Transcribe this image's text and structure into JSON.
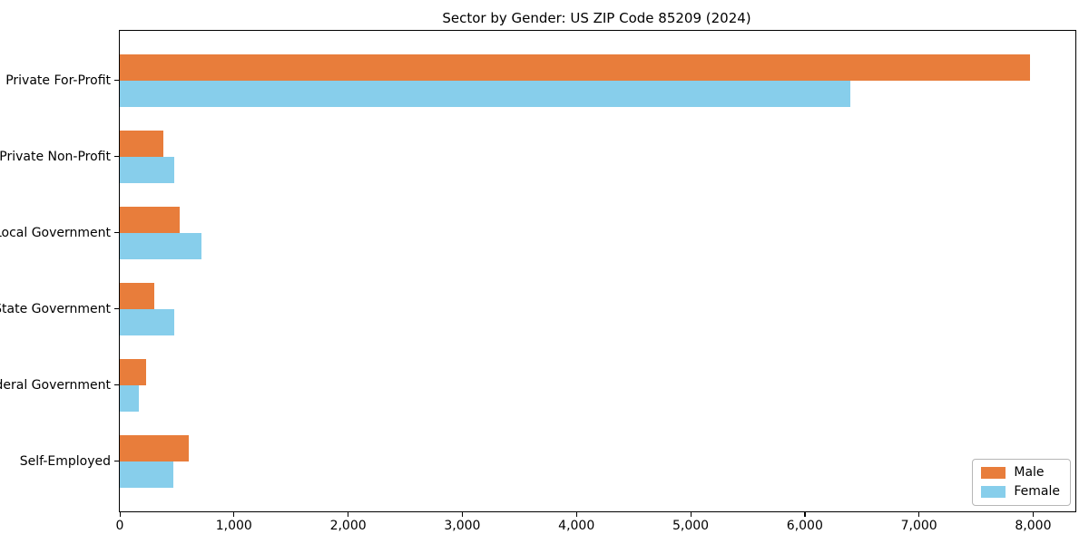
{
  "title": "Sector by Gender: US ZIP Code 85209 (2024)",
  "chart_data": {
    "type": "bar",
    "orientation": "horizontal",
    "title": "Sector by Gender: US ZIP Code 85209 (2024)",
    "categories": [
      "Private For-Profit",
      "Private Non-Profit",
      "Local Government",
      "State Government",
      "Federal Government",
      "Self-Employed"
    ],
    "series": [
      {
        "name": "Male",
        "color": "#e87d3b",
        "values": [
          7970,
          385,
          525,
          300,
          230,
          605
        ]
      },
      {
        "name": "Female",
        "color": "#87ceeb",
        "values": [
          6400,
          480,
          715,
          480,
          165,
          470
        ]
      }
    ],
    "xlim": [
      0,
      8370
    ],
    "x_ticks": [
      0,
      1000,
      2000,
      3000,
      4000,
      5000,
      6000,
      7000,
      8000
    ],
    "x_tick_labels": [
      "0",
      "1,000",
      "2,000",
      "3,000",
      "4,000",
      "5,000",
      "6,000",
      "7,000",
      "8,000"
    ],
    "xlabel": "",
    "ylabel": "",
    "grid": false,
    "legend": {
      "position": "lower right",
      "entries": [
        "Male",
        "Female"
      ]
    }
  }
}
